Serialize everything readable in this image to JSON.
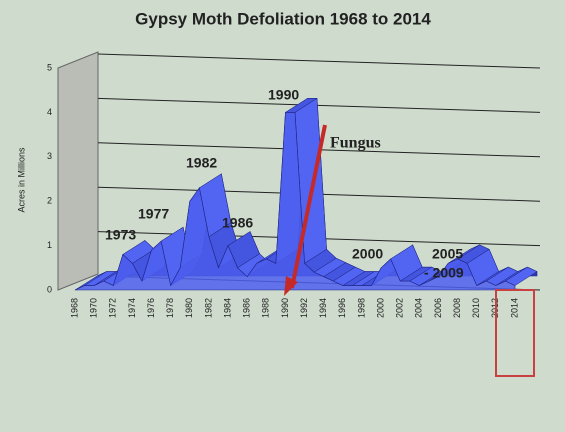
{
  "chart_data": {
    "type": "area3d",
    "title": "Gypsy Moth Defoliation 1968 to 2014",
    "y_label": "Acres in Millions",
    "categories": [
      "1968",
      null,
      "1970",
      null,
      "1972",
      null,
      "1974",
      null,
      "1976",
      null,
      "1978",
      null,
      "1980",
      null,
      "1982",
      null,
      "1984",
      null,
      "1986",
      null,
      "1988",
      null,
      "1990",
      null,
      "1992",
      null,
      "1994",
      null,
      "1996",
      null,
      "1998",
      null,
      "2000",
      null,
      "2002",
      null,
      "2004",
      null,
      "2006",
      null,
      "2008",
      null,
      "2010",
      null,
      "2012",
      null,
      "2014"
    ],
    "values": [
      0.0,
      0.1,
      0.1,
      0.2,
      0.1,
      0.8,
      0.6,
      0.2,
      0.9,
      1.1,
      0.1,
      0.5,
      2.0,
      2.3,
      1.2,
      0.5,
      1.0,
      0.5,
      0.3,
      0.6,
      0.7,
      0.6,
      4.0,
      4.0,
      0.6,
      0.4,
      0.3,
      0.2,
      0.1,
      0.1,
      0.1,
      0.1,
      0.5,
      0.7,
      0.2,
      0.2,
      0.1,
      0.2,
      0.3,
      0.6,
      0.7,
      0.6,
      0.1,
      0.2,
      0.1,
      0.2,
      0.1
    ],
    "color": "#4d5ff0",
    "ylim": [
      0,
      5
    ],
    "yticks": [
      0,
      1,
      2,
      3,
      4,
      5
    ],
    "grid": true,
    "annotations": [
      "1973",
      "1977",
      "1982",
      "1986",
      "1990",
      "2000",
      "2005",
      "- 2009",
      "Fungus"
    ]
  }
}
